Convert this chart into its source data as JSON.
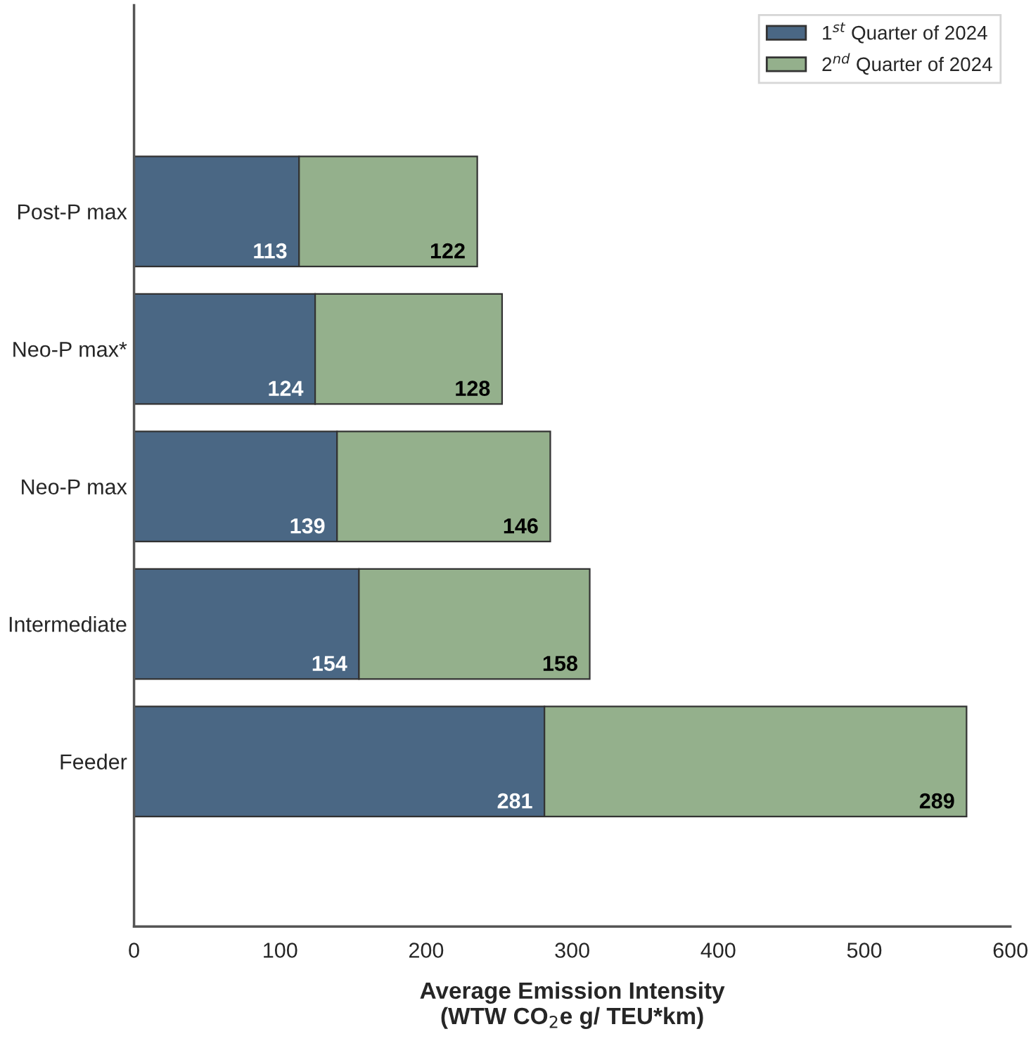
{
  "chart_data": {
    "type": "bar",
    "orientation": "horizontal",
    "stacked": true,
    "categories": [
      "Post-P max",
      "Neo-P max*",
      "Neo-P max",
      "Intermediate",
      "Feeder"
    ],
    "series": [
      {
        "name": "1$^{st}$ Quarter of 2024",
        "color": "#4a6784",
        "values": [
          113,
          124,
          139,
          154,
          281
        ]
      },
      {
        "name": "2$^{nd}$ Quarter of 2024",
        "color": "#94b08c",
        "values": [
          122,
          128,
          146,
          158,
          289
        ]
      }
    ],
    "xlabel": "Average Emission Intensity\n(WTW CO$_{2}$e g/ TEU*km)",
    "xlim": [
      0,
      600
    ],
    "xticks": [
      0,
      100,
      200,
      300,
      400,
      500,
      600
    ],
    "data_labels": true,
    "legend": "top right",
    "grid": false
  }
}
